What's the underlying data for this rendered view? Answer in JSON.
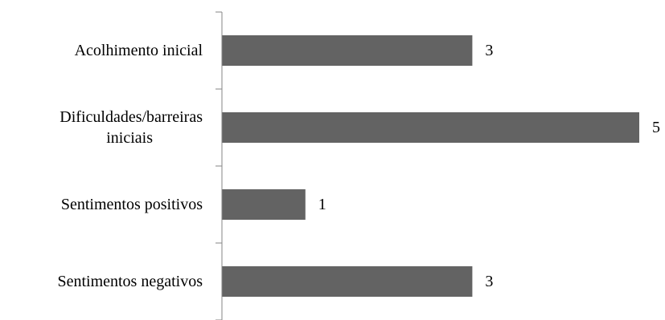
{
  "chart_data": {
    "type": "bar",
    "orientation": "horizontal",
    "categories": [
      "Acolhimento inicial",
      "Dificuldades/barreiras iniciais",
      "Sentimentos positivos",
      "Sentimentos negativos"
    ],
    "category_label_lines": [
      [
        "Acolhimento inicial"
      ],
      [
        "Dificuldades/barreiras",
        "iniciais"
      ],
      [
        "Sentimentos positivos"
      ],
      [
        "Sentimentos negativos"
      ]
    ],
    "values": [
      3,
      5,
      1,
      3
    ],
    "data_labels": [
      "3",
      "5",
      "1",
      "3"
    ],
    "xlim": [
      0,
      5
    ],
    "grid": false,
    "legend": "none",
    "bar_color": "#636363",
    "axis_color": "#868686"
  }
}
